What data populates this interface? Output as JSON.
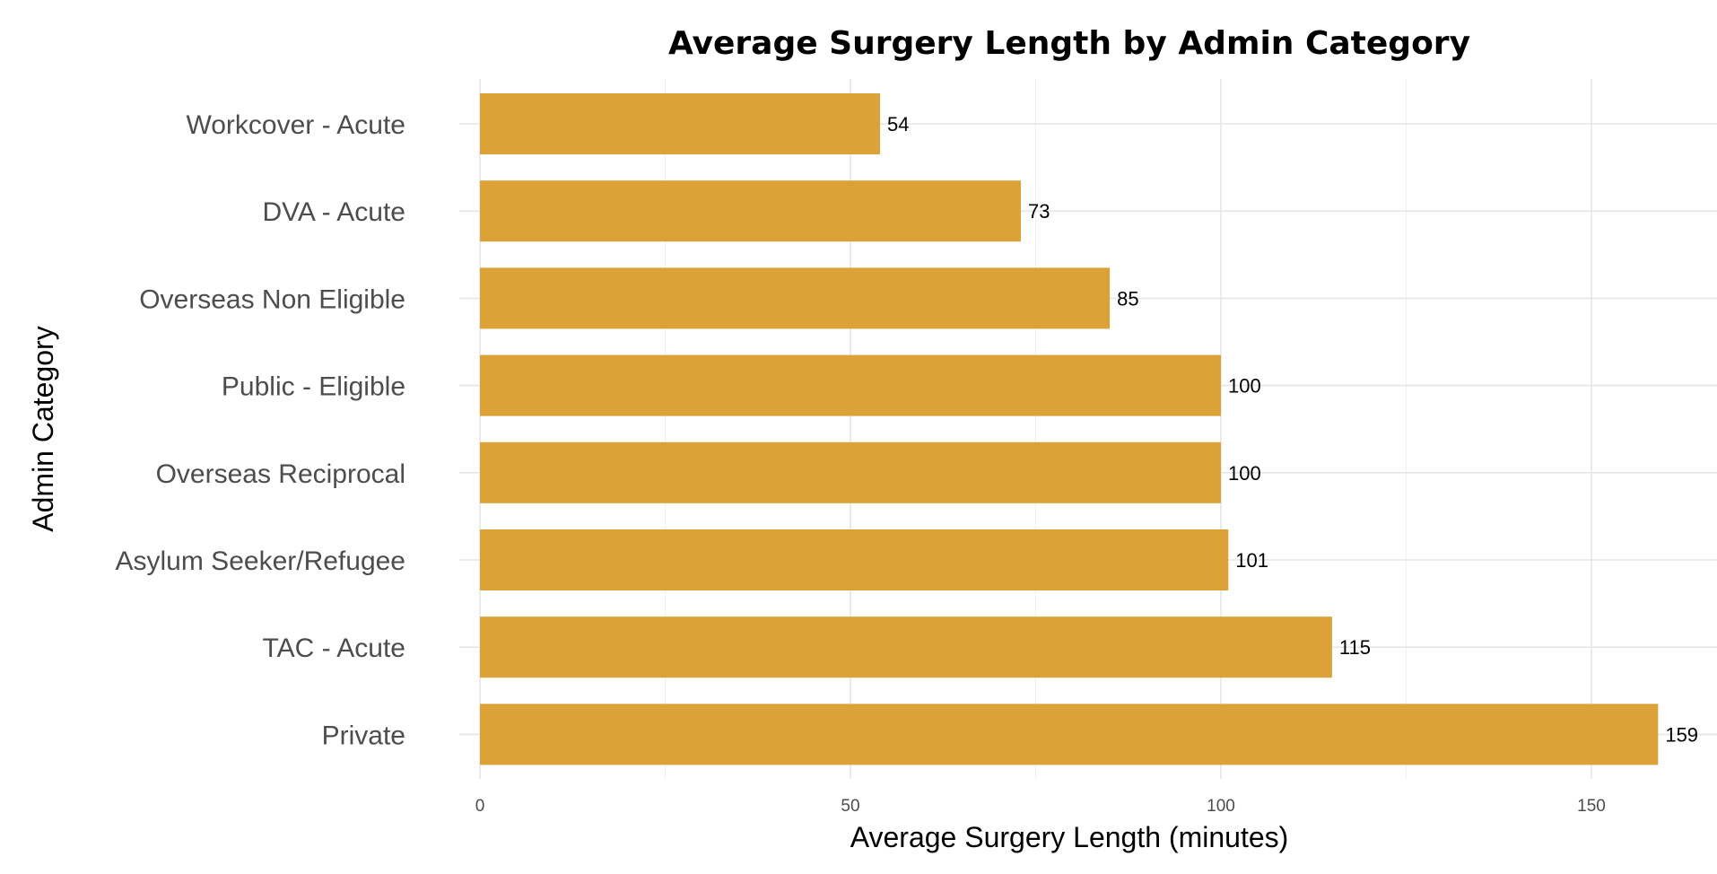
{
  "chart_data": {
    "type": "bar",
    "orientation": "horizontal",
    "title": "Average Surgery Length by Admin Category",
    "xlabel": "Average Surgery Length (minutes)",
    "ylabel": "Admin Category",
    "categories": [
      "Workcover - Acute",
      "DVA - Acute",
      "Overseas Non Eligible",
      "Public - Eligible",
      "Overseas Reciprocal",
      "Asylum Seeker/Refugee",
      "TAC - Acute",
      "Private"
    ],
    "values": [
      54,
      73,
      85,
      100,
      100,
      101,
      115,
      159
    ],
    "value_labels": [
      "54",
      "73",
      "85",
      "100",
      "100",
      "101",
      "115",
      "159"
    ],
    "xlim": [
      0,
      165
    ],
    "x_ticks": [
      0,
      50,
      100,
      150
    ],
    "x_tick_labels": [
      "0",
      "50",
      "100",
      "150"
    ],
    "grid": true,
    "legend": "none",
    "bar_color": "#DCA237"
  }
}
